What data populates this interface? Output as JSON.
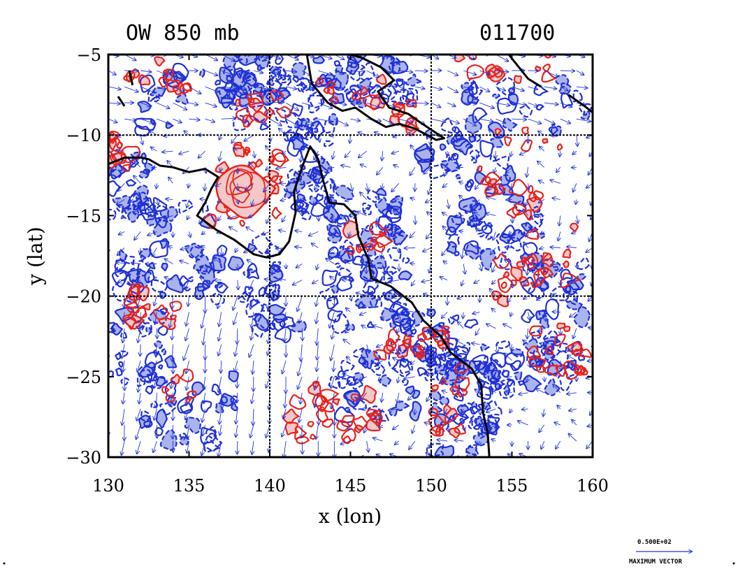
{
  "chart_data": {
    "type": "heatmap",
    "title_left": "OW 850 mb",
    "title_right": "011700",
    "xlabel": "x (lon)",
    "ylabel": "y (lat)",
    "xlim": [
      130,
      160
    ],
    "ylim": [
      -30,
      -5
    ],
    "x_ticks": [
      130,
      135,
      140,
      145,
      150,
      155,
      160
    ],
    "y_ticks": [
      -5,
      -10,
      -15,
      -20,
      -25,
      -30
    ],
    "x_tick_labels": [
      "130",
      "135",
      "140",
      "145",
      "150",
      "155",
      "160"
    ],
    "y_tick_labels": [
      "−5",
      "−10",
      "−15",
      "−20",
      "−25",
      "−30"
    ],
    "grid_lon": [
      140,
      150
    ],
    "grid_lat": [
      -10,
      -20
    ],
    "colors": {
      "positive_contour": "#e8231d",
      "positive_fill": "#f4c8c8",
      "negative_contour": "#1f2fd6",
      "negative_fill": "#aab4ec",
      "vector": "#2236d8",
      "coastline": "#000000"
    },
    "legend": {
      "value": "0.500E+02",
      "label": "MAXIMUM VECTOR"
    },
    "coastline_lonlat": [
      [
        [
          142.3,
          -5.0
        ],
        [
          142.6,
          -6.8
        ],
        [
          143.6,
          -8.0
        ],
        [
          144.5,
          -8.5
        ],
        [
          145.3,
          -8.3
        ],
        [
          146.3,
          -9.0
        ],
        [
          147.2,
          -9.5
        ],
        [
          148.0,
          -9.3
        ],
        [
          149.0,
          -9.6
        ],
        [
          150.3,
          -10.3
        ],
        [
          150.8,
          -10.2
        ],
        [
          150.2,
          -9.8
        ],
        [
          149.3,
          -9.2
        ],
        [
          148.6,
          -8.7
        ],
        [
          147.4,
          -8.3
        ],
        [
          146.7,
          -7.3
        ],
        [
          147.7,
          -6.6
        ],
        [
          146.9,
          -5.8
        ],
        [
          145.7,
          -5.2
        ],
        [
          145.0,
          -5.0
        ]
      ],
      [
        [
          130.0,
          -11.8
        ],
        [
          131.0,
          -11.4
        ],
        [
          132.0,
          -11.4
        ],
        [
          132.5,
          -11.5
        ],
        [
          133.2,
          -11.9
        ],
        [
          134.0,
          -12.0
        ],
        [
          135.0,
          -12.3
        ],
        [
          136.0,
          -12.1
        ],
        [
          136.8,
          -12.6
        ],
        [
          136.4,
          -13.3
        ],
        [
          136.0,
          -14.2
        ],
        [
          135.5,
          -15.0
        ],
        [
          136.7,
          -15.9
        ],
        [
          137.8,
          -16.5
        ],
        [
          139.0,
          -17.4
        ],
        [
          139.8,
          -17.6
        ],
        [
          140.6,
          -17.4
        ],
        [
          141.2,
          -16.6
        ],
        [
          141.6,
          -14.8
        ],
        [
          141.5,
          -13.5
        ],
        [
          142.0,
          -12.0
        ],
        [
          142.5,
          -10.7
        ],
        [
          143.0,
          -11.5
        ],
        [
          143.3,
          -12.8
        ],
        [
          143.7,
          -14.2
        ],
        [
          144.6,
          -14.3
        ],
        [
          145.3,
          -15.0
        ],
        [
          145.5,
          -16.3
        ],
        [
          146.1,
          -17.7
        ],
        [
          146.3,
          -18.9
        ],
        [
          147.5,
          -19.4
        ],
        [
          148.8,
          -20.4
        ],
        [
          149.5,
          -21.5
        ],
        [
          150.6,
          -22.5
        ],
        [
          151.2,
          -23.5
        ],
        [
          152.5,
          -24.5
        ],
        [
          153.1,
          -25.5
        ],
        [
          153.2,
          -27.2
        ],
        [
          153.5,
          -28.5
        ],
        [
          153.6,
          -30.0
        ]
      ],
      [
        [
          154.8,
          -5.0
        ],
        [
          156.0,
          -6.5
        ],
        [
          156.8,
          -7.0
        ]
      ],
      [
        [
          158.5,
          -7.5
        ],
        [
          159.5,
          -8.2
        ],
        [
          160.0,
          -8.6
        ]
      ],
      [
        [
          131.3,
          -6.0
        ],
        [
          131.5,
          -6.9
        ]
      ],
      [
        [
          130.6,
          -7.6
        ],
        [
          131.0,
          -8.2
        ]
      ]
    ]
  }
}
